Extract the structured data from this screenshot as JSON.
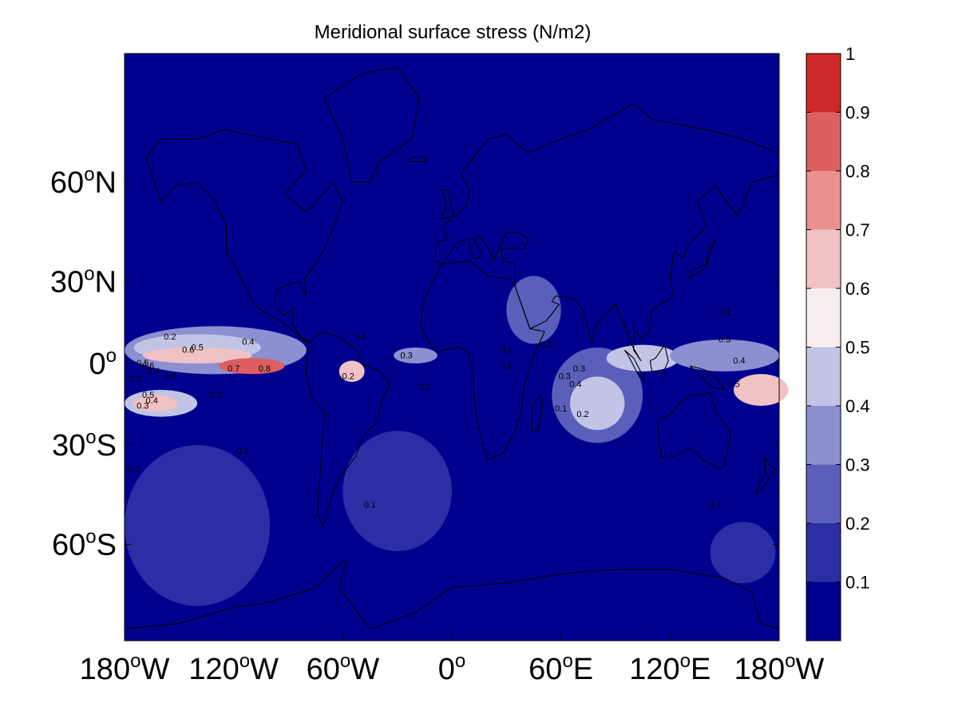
{
  "chart_data": {
    "type": "heatmap",
    "subtype": "filled contour map",
    "title": "Meridional surface stress (N/m2)",
    "projection": "Miller cylindrical",
    "lon_range": [
      -180,
      180
    ],
    "lat_range": [
      -80,
      85
    ],
    "xticks": [
      {
        "value": -180,
        "num": "180",
        "deg": "o",
        "hem": "W"
      },
      {
        "value": -120,
        "num": "120",
        "deg": "o",
        "hem": "W"
      },
      {
        "value": -60,
        "num": "60",
        "deg": "o",
        "hem": "W"
      },
      {
        "value": 0,
        "num": "0",
        "deg": "o",
        "hem": ""
      },
      {
        "value": 60,
        "num": "60",
        "deg": "o",
        "hem": "E"
      },
      {
        "value": 120,
        "num": "120",
        "deg": "o",
        "hem": "E"
      },
      {
        "value": 180,
        "num": "180",
        "deg": "o",
        "hem": "W"
      }
    ],
    "yticks": [
      {
        "value": 60,
        "num": "60",
        "deg": "o",
        "hem": "N"
      },
      {
        "value": 30,
        "num": "30",
        "deg": "o",
        "hem": "N"
      },
      {
        "value": 0,
        "num": "0",
        "deg": "o",
        "hem": ""
      },
      {
        "value": -30,
        "num": "30",
        "deg": "o",
        "hem": "S"
      },
      {
        "value": -60,
        "num": "60",
        "deg": "o",
        "hem": "S"
      }
    ],
    "colorbar": {
      "levels": [
        0,
        0.1,
        0.2,
        0.3,
        0.4,
        0.5,
        0.6,
        0.7,
        0.8,
        0.9,
        1.0
      ],
      "tick_labels": [
        "0.1",
        "0.2",
        "0.3",
        "0.4",
        "0.5",
        "0.6",
        "0.7",
        "0.8",
        "0.9",
        "1"
      ],
      "colors": [
        "#00008f",
        "#2b2ea4",
        "#5a5fbb",
        "#8c90d0",
        "#c2c4e6",
        "#f8eef0",
        "#f0c2c3",
        "#e99191",
        "#de5f5f",
        "#cf2828"
      ]
    },
    "regions": [
      {
        "lon": -130,
        "lat": 5,
        "rx": 50,
        "ry": 9,
        "value": 0.3
      },
      {
        "lon": -140,
        "lat": 6,
        "rx": 35,
        "ry": 5,
        "value": 0.45
      },
      {
        "lon": -140,
        "lat": 3,
        "rx": 30,
        "ry": 3,
        "value": 0.62
      },
      {
        "lon": -110,
        "lat": -1,
        "rx": 18,
        "ry": 3,
        "value": 0.85
      },
      {
        "lon": -160,
        "lat": -15,
        "rx": 20,
        "ry": 5,
        "value": 0.45
      },
      {
        "lon": -163,
        "lat": -15,
        "rx": 12,
        "ry": 3,
        "value": 0.62
      },
      {
        "lon": -55,
        "lat": -3,
        "rx": 7,
        "ry": 4,
        "value": 0.62
      },
      {
        "lon": -20,
        "lat": 3,
        "rx": 12,
        "ry": 3,
        "value": 0.32
      },
      {
        "lon": 45,
        "lat": 20,
        "rx": 15,
        "ry": 12,
        "value": 0.28
      },
      {
        "lon": 80,
        "lat": -12,
        "rx": 25,
        "ry": 18,
        "value": 0.28
      },
      {
        "lon": 80,
        "lat": -15,
        "rx": 15,
        "ry": 10,
        "value": 0.45
      },
      {
        "lon": 105,
        "lat": 2,
        "rx": 20,
        "ry": 5,
        "value": 0.4
      },
      {
        "lon": 150,
        "lat": 3,
        "rx": 30,
        "ry": 6,
        "value": 0.35
      },
      {
        "lon": 170,
        "lat": -10,
        "rx": 15,
        "ry": 6,
        "value": 0.6
      },
      {
        "lon": 160,
        "lat": -62,
        "rx": 18,
        "ry": 8,
        "value": 0.15
      },
      {
        "lon": -140,
        "lat": -55,
        "rx": 40,
        "ry": 25,
        "value": 0.15
      },
      {
        "lon": -30,
        "lat": -45,
        "rx": 30,
        "ry": 20,
        "value": 0.15
      }
    ],
    "contour_labels": [
      {
        "lon": -155,
        "lat": 9,
        "text": "0.2"
      },
      {
        "lon": -112,
        "lat": 7,
        "text": "0.4"
      },
      {
        "lon": -140,
        "lat": 5,
        "text": "0.5"
      },
      {
        "lon": -145,
        "lat": 4,
        "text": "0.6"
      },
      {
        "lon": -120,
        "lat": -3,
        "text": "0.7"
      },
      {
        "lon": -103,
        "lat": -3,
        "text": "0.8"
      },
      {
        "lon": -170,
        "lat": -1,
        "text": "0.5"
      },
      {
        "lon": -167,
        "lat": -2,
        "text": "0.6"
      },
      {
        "lon": -164,
        "lat": -4,
        "text": "0.4"
      },
      {
        "lon": -155,
        "lat": -6,
        "text": "0.3"
      },
      {
        "lon": -174,
        "lat": -7,
        "text": "0.2"
      },
      {
        "lon": -167,
        "lat": -13,
        "text": "0.5"
      },
      {
        "lon": -165,
        "lat": -15,
        "text": "0.4"
      },
      {
        "lon": -170,
        "lat": -17,
        "text": "0.3"
      },
      {
        "lon": -130,
        "lat": -13,
        "text": "0.3"
      },
      {
        "lon": -50,
        "lat": 9,
        "text": "0.1"
      },
      {
        "lon": -57,
        "lat": -6,
        "text": "0.2"
      },
      {
        "lon": -25,
        "lat": 2,
        "text": "0.3"
      },
      {
        "lon": -15,
        "lat": -10,
        "text": "0.2"
      },
      {
        "lon": 30,
        "lat": 4,
        "text": "0.2"
      },
      {
        "lon": 30,
        "lat": -2,
        "text": "0.1"
      },
      {
        "lon": 52,
        "lat": 6,
        "text": "0.1"
      },
      {
        "lon": 62,
        "lat": -6,
        "text": "0.3"
      },
      {
        "lon": 68,
        "lat": -9,
        "text": "0.4"
      },
      {
        "lon": 70,
        "lat": -3,
        "text": "0.3"
      },
      {
        "lon": 60,
        "lat": -18,
        "text": "0.1"
      },
      {
        "lon": 72,
        "lat": -20,
        "text": "0.2"
      },
      {
        "lon": 150,
        "lat": 8,
        "text": "0.3"
      },
      {
        "lon": 158,
        "lat": 0,
        "text": "0.4"
      },
      {
        "lon": 155,
        "lat": -9,
        "text": "0.5"
      },
      {
        "lon": 145,
        "lat": -50,
        "text": "0.1"
      },
      {
        "lon": 150,
        "lat": 18,
        "text": "0.1"
      },
      {
        "lon": -175,
        "lat": -39,
        "text": "0.1"
      },
      {
        "lon": -115,
        "lat": -33,
        "text": "0.1"
      },
      {
        "lon": -45,
        "lat": -50,
        "text": "0.1"
      }
    ]
  }
}
